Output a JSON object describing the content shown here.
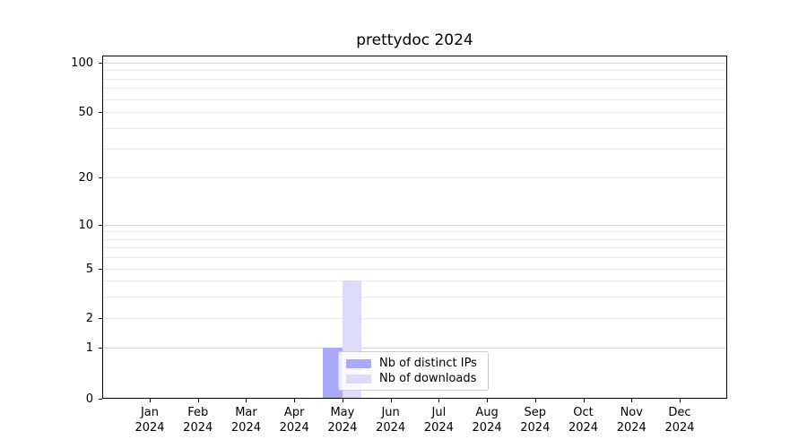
{
  "title": "prettydoc 2024",
  "chart_data": {
    "type": "bar",
    "title": "prettydoc 2024",
    "categories": [
      "Jan",
      "Feb",
      "Mar",
      "Apr",
      "May",
      "Jun",
      "Jul",
      "Aug",
      "Sep",
      "Oct",
      "Nov",
      "Dec"
    ],
    "year_label": "2024",
    "series": [
      {
        "name": "Nb of distinct IPs",
        "color": "#a9a9f7",
        "values": [
          0,
          0,
          0,
          0,
          1,
          0,
          0,
          0,
          0,
          0,
          0,
          0
        ]
      },
      {
        "name": "Nb of downloads",
        "color": "#dcdcfa",
        "values": [
          0,
          0,
          0,
          0,
          4,
          0,
          0,
          0,
          0,
          0,
          0,
          0
        ]
      }
    ],
    "y_ticks": [
      0,
      1,
      2,
      5,
      10,
      20,
      50,
      100
    ],
    "y_minor_gridlines": [
      2,
      3,
      4,
      5,
      6,
      7,
      8,
      9,
      20,
      30,
      40,
      50,
      60,
      70,
      80,
      90
    ],
    "y_major_gridlines": [
      1,
      10,
      100
    ],
    "yscale": "symlog-like",
    "ylim": [
      0,
      110
    ],
    "xlabel": "",
    "ylabel": "",
    "grid": "horizontal",
    "legend_position": "lower-center"
  }
}
